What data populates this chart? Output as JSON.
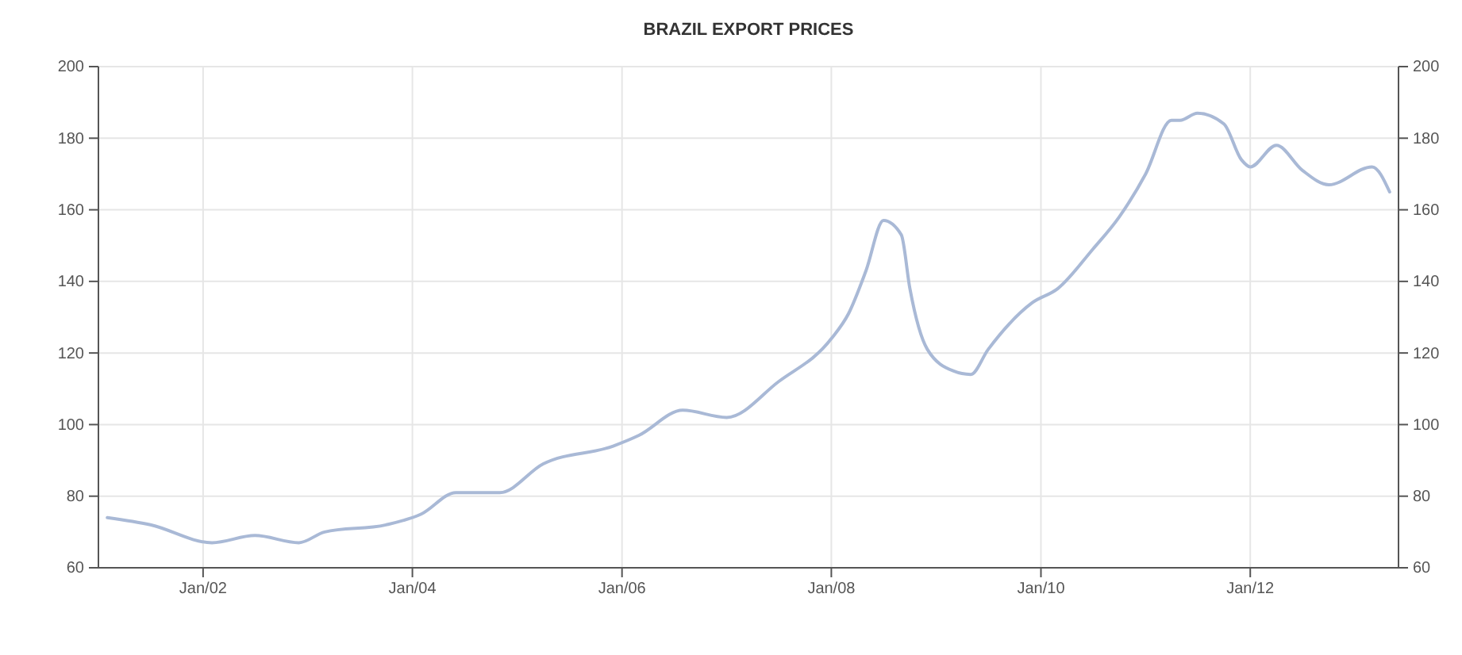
{
  "chart_data": {
    "type": "line",
    "title": "BRAZIL EXPORT PRICES",
    "x": [
      "2001-02",
      "2001-07",
      "2002-02",
      "2002-07",
      "2002-12",
      "2003-03",
      "2003-10",
      "2004-02",
      "2004-06",
      "2004-11",
      "2005-04",
      "2005-12",
      "2006-03",
      "2006-08",
      "2007-01",
      "2007-07",
      "2008-01",
      "2008-03",
      "2008-05",
      "2008-07",
      "2008-09",
      "2008-10",
      "2008-12",
      "2009-03",
      "2009-05",
      "2009-07",
      "2009-12",
      "2010-03",
      "2010-07",
      "2010-10",
      "2011-01",
      "2011-04",
      "2011-05",
      "2011-07",
      "2011-10",
      "2011-12",
      "2012-01",
      "2012-04",
      "2012-07",
      "2012-10",
      "2013-03",
      "2013-05"
    ],
    "series": [
      {
        "color": "#a9b9d6",
        "values": [
          74,
          72,
          67,
          69,
          67,
          70,
          72,
          75,
          81,
          81,
          89,
          94,
          97,
          104,
          102,
          112,
          124,
          131,
          143,
          157,
          153,
          138,
          121,
          115,
          114,
          121,
          134,
          138,
          149,
          158,
          170,
          185,
          185,
          187,
          184,
          174,
          172,
          178,
          171,
          167,
          172,
          165
        ]
      }
    ],
    "xlim": [
      "2001-01",
      "2013-06"
    ],
    "xticks": [
      {
        "value": "2002-01",
        "label": "Jan/02"
      },
      {
        "value": "2004-01",
        "label": "Jan/04"
      },
      {
        "value": "2006-01",
        "label": "Jan/06"
      },
      {
        "value": "2008-01",
        "label": "Jan/08"
      },
      {
        "value": "2010-01",
        "label": "Jan/10"
      },
      {
        "value": "2012-01",
        "label": "Jan/12"
      }
    ],
    "ylim": [
      60,
      200
    ],
    "yticks": [
      60,
      80,
      100,
      120,
      140,
      160,
      180,
      200
    ],
    "y2lim": [
      60,
      200
    ],
    "y2ticks": [
      60,
      80,
      100,
      120,
      140,
      160,
      180,
      200
    ],
    "grid": true
  }
}
